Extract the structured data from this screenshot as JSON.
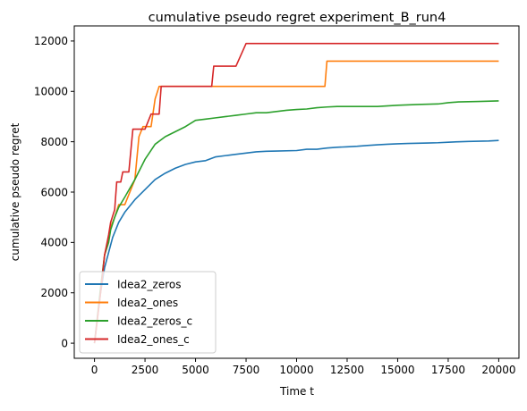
{
  "chart_data": {
    "type": "line",
    "title": "cumulative pseudo regret experiment_B_run4",
    "xlabel": "Time t",
    "ylabel": "cumulative pseudo regret",
    "xlim": [
      -1000,
      21000
    ],
    "ylim": [
      -600,
      12600
    ],
    "xticks": [
      0,
      2500,
      5000,
      7500,
      10000,
      12500,
      15000,
      17500,
      20000
    ],
    "yticks": [
      0,
      2000,
      4000,
      6000,
      8000,
      10000,
      12000
    ],
    "grid": false,
    "legend_position": "lower-left",
    "series": [
      {
        "name": "Idea2_zeros",
        "color": "#1f77b4",
        "points": [
          [
            0,
            0
          ],
          [
            300,
            2000
          ],
          [
            500,
            3000
          ],
          [
            700,
            3600
          ],
          [
            900,
            4200
          ],
          [
            1200,
            4800
          ],
          [
            1500,
            5200
          ],
          [
            2000,
            5700
          ],
          [
            2500,
            6100
          ],
          [
            3000,
            6500
          ],
          [
            3500,
            6750
          ],
          [
            4000,
            6950
          ],
          [
            4500,
            7100
          ],
          [
            5000,
            7200
          ],
          [
            5500,
            7250
          ],
          [
            6000,
            7400
          ],
          [
            6500,
            7450
          ],
          [
            7000,
            7500
          ],
          [
            7500,
            7550
          ],
          [
            8000,
            7600
          ],
          [
            8500,
            7620
          ],
          [
            9000,
            7630
          ],
          [
            10000,
            7650
          ],
          [
            10500,
            7700
          ],
          [
            11000,
            7700
          ],
          [
            11500,
            7750
          ],
          [
            12000,
            7780
          ],
          [
            12500,
            7800
          ],
          [
            13000,
            7820
          ],
          [
            13500,
            7850
          ],
          [
            14000,
            7880
          ],
          [
            14500,
            7900
          ],
          [
            15000,
            7920
          ],
          [
            15500,
            7930
          ],
          [
            16000,
            7940
          ],
          [
            16500,
            7950
          ],
          [
            17000,
            7960
          ],
          [
            17500,
            7980
          ],
          [
            18000,
            8000
          ],
          [
            18500,
            8010
          ],
          [
            19000,
            8020
          ],
          [
            19500,
            8030
          ],
          [
            20000,
            8050
          ]
        ]
      },
      {
        "name": "Idea2_ones",
        "color": "#ff7f0e",
        "points": [
          [
            0,
            0
          ],
          [
            300,
            2000
          ],
          [
            500,
            3500
          ],
          [
            700,
            4200
          ],
          [
            800,
            4600
          ],
          [
            1000,
            5000
          ],
          [
            1200,
            5500
          ],
          [
            1500,
            5500
          ],
          [
            2000,
            6500
          ],
          [
            2200,
            8200
          ],
          [
            2400,
            8600
          ],
          [
            2800,
            8600
          ],
          [
            3000,
            9700
          ],
          [
            3200,
            10200
          ],
          [
            3500,
            10200
          ],
          [
            5000,
            10200
          ],
          [
            7000,
            10200
          ],
          [
            9000,
            10200
          ],
          [
            11400,
            10200
          ],
          [
            11500,
            11200
          ],
          [
            13000,
            11200
          ],
          [
            15000,
            11200
          ],
          [
            17000,
            11200
          ],
          [
            20000,
            11200
          ]
        ]
      },
      {
        "name": "Idea2_zeros_c",
        "color": "#2ca02c",
        "points": [
          [
            0,
            0
          ],
          [
            300,
            2200
          ],
          [
            500,
            3500
          ],
          [
            700,
            4000
          ],
          [
            800,
            4500
          ],
          [
            1000,
            5000
          ],
          [
            1200,
            5400
          ],
          [
            1500,
            5800
          ],
          [
            2000,
            6500
          ],
          [
            2500,
            7300
          ],
          [
            3000,
            7900
          ],
          [
            3500,
            8200
          ],
          [
            4000,
            8400
          ],
          [
            4500,
            8600
          ],
          [
            5000,
            8850
          ],
          [
            5500,
            8900
          ],
          [
            6000,
            8950
          ],
          [
            6500,
            9000
          ],
          [
            7000,
            9050
          ],
          [
            7500,
            9100
          ],
          [
            8000,
            9150
          ],
          [
            8500,
            9150
          ],
          [
            9000,
            9200
          ],
          [
            9500,
            9250
          ],
          [
            10000,
            9280
          ],
          [
            10500,
            9300
          ],
          [
            11000,
            9350
          ],
          [
            11500,
            9380
          ],
          [
            12000,
            9400
          ],
          [
            14000,
            9400
          ],
          [
            15000,
            9450
          ],
          [
            16000,
            9480
          ],
          [
            17000,
            9500
          ],
          [
            17500,
            9550
          ],
          [
            18000,
            9580
          ],
          [
            19000,
            9600
          ],
          [
            20000,
            9620
          ]
        ]
      },
      {
        "name": "Idea2_ones_c",
        "color": "#d62728",
        "points": [
          [
            0,
            0
          ],
          [
            300,
            2000
          ],
          [
            500,
            3500
          ],
          [
            700,
            4300
          ],
          [
            800,
            4800
          ],
          [
            1000,
            5300
          ],
          [
            1100,
            6400
          ],
          [
            1300,
            6400
          ],
          [
            1400,
            6800
          ],
          [
            1700,
            6800
          ],
          [
            1900,
            8500
          ],
          [
            2500,
            8500
          ],
          [
            2800,
            9100
          ],
          [
            3200,
            9100
          ],
          [
            3300,
            10200
          ],
          [
            3500,
            10200
          ],
          [
            4500,
            10200
          ],
          [
            5800,
            10200
          ],
          [
            5900,
            11000
          ],
          [
            7000,
            11000
          ],
          [
            7500,
            11900
          ],
          [
            10000,
            11900
          ],
          [
            12500,
            11900
          ],
          [
            15000,
            11900
          ],
          [
            17500,
            11900
          ],
          [
            20000,
            11900
          ]
        ]
      }
    ]
  }
}
